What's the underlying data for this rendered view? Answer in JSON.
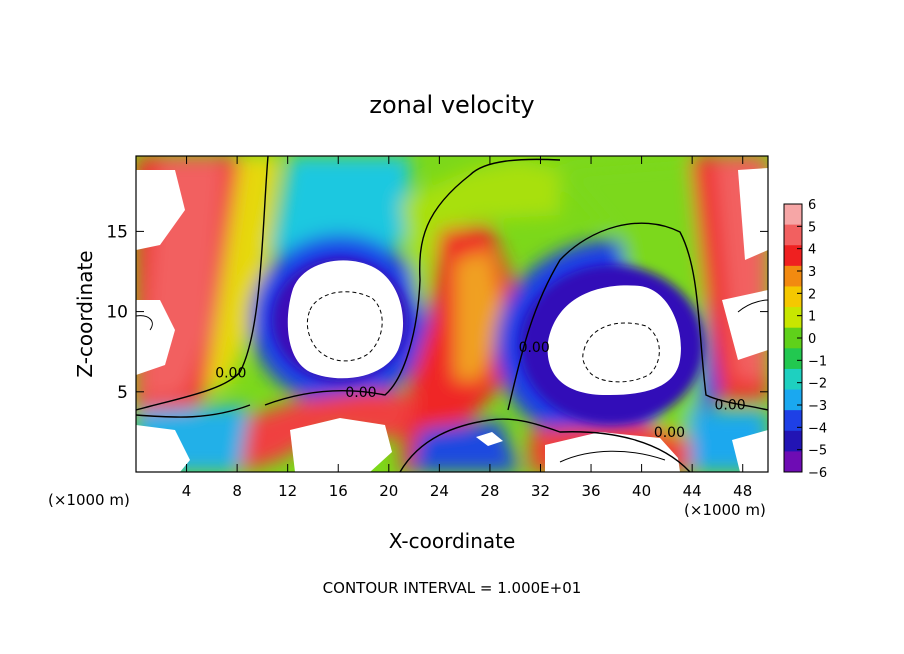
{
  "chart_data": {
    "type": "heatmap",
    "title": "zonal velocity",
    "xlabel": "X-coordinate",
    "ylabel": "Z-coordinate",
    "x_unit_left": "(×1000 m)",
    "x_unit_right": "(×1000 m)",
    "footer": "CONTOUR INTERVAL = 1.000E+01",
    "xlim": [
      0,
      50
    ],
    "ylim": [
      0,
      19.7
    ],
    "x_ticks": [
      4,
      8,
      12,
      16,
      20,
      24,
      28,
      32,
      36,
      40,
      44,
      48
    ],
    "y_ticks": [
      5,
      10,
      15
    ],
    "colorbar": {
      "ticks": [
        6,
        5,
        4,
        3,
        2,
        1,
        0,
        -1,
        -2,
        -3,
        -4,
        -5,
        -6
      ],
      "tick_labels": [
        "6",
        "5",
        "4",
        "3",
        "2",
        "1",
        "0",
        "−1",
        "−2",
        "−3",
        "−4",
        "−5",
        "−6"
      ],
      "range": [
        -6,
        6
      ],
      "colors": [
        "#f6a6a6",
        "#f26060",
        "#ef2020",
        "#f28a10",
        "#f5c800",
        "#c8e600",
        "#5fd11a",
        "#22c850",
        "#1ed0c0",
        "#1aa8f0",
        "#1e40e6",
        "#2214b4",
        "#6e0cb4"
      ]
    },
    "contour_labels": [
      {
        "text": "0.00",
        "x": 7.5,
        "z": 6.2
      },
      {
        "text": "0.00",
        "x": 17.8,
        "z": 5.0
      },
      {
        "text": "0.00",
        "x": 31.5,
        "z": 7.8
      },
      {
        "text": "0.00",
        "x": 42.2,
        "z": 2.5
      },
      {
        "text": "0.00",
        "x": 47.0,
        "z": 4.2
      }
    ]
  }
}
